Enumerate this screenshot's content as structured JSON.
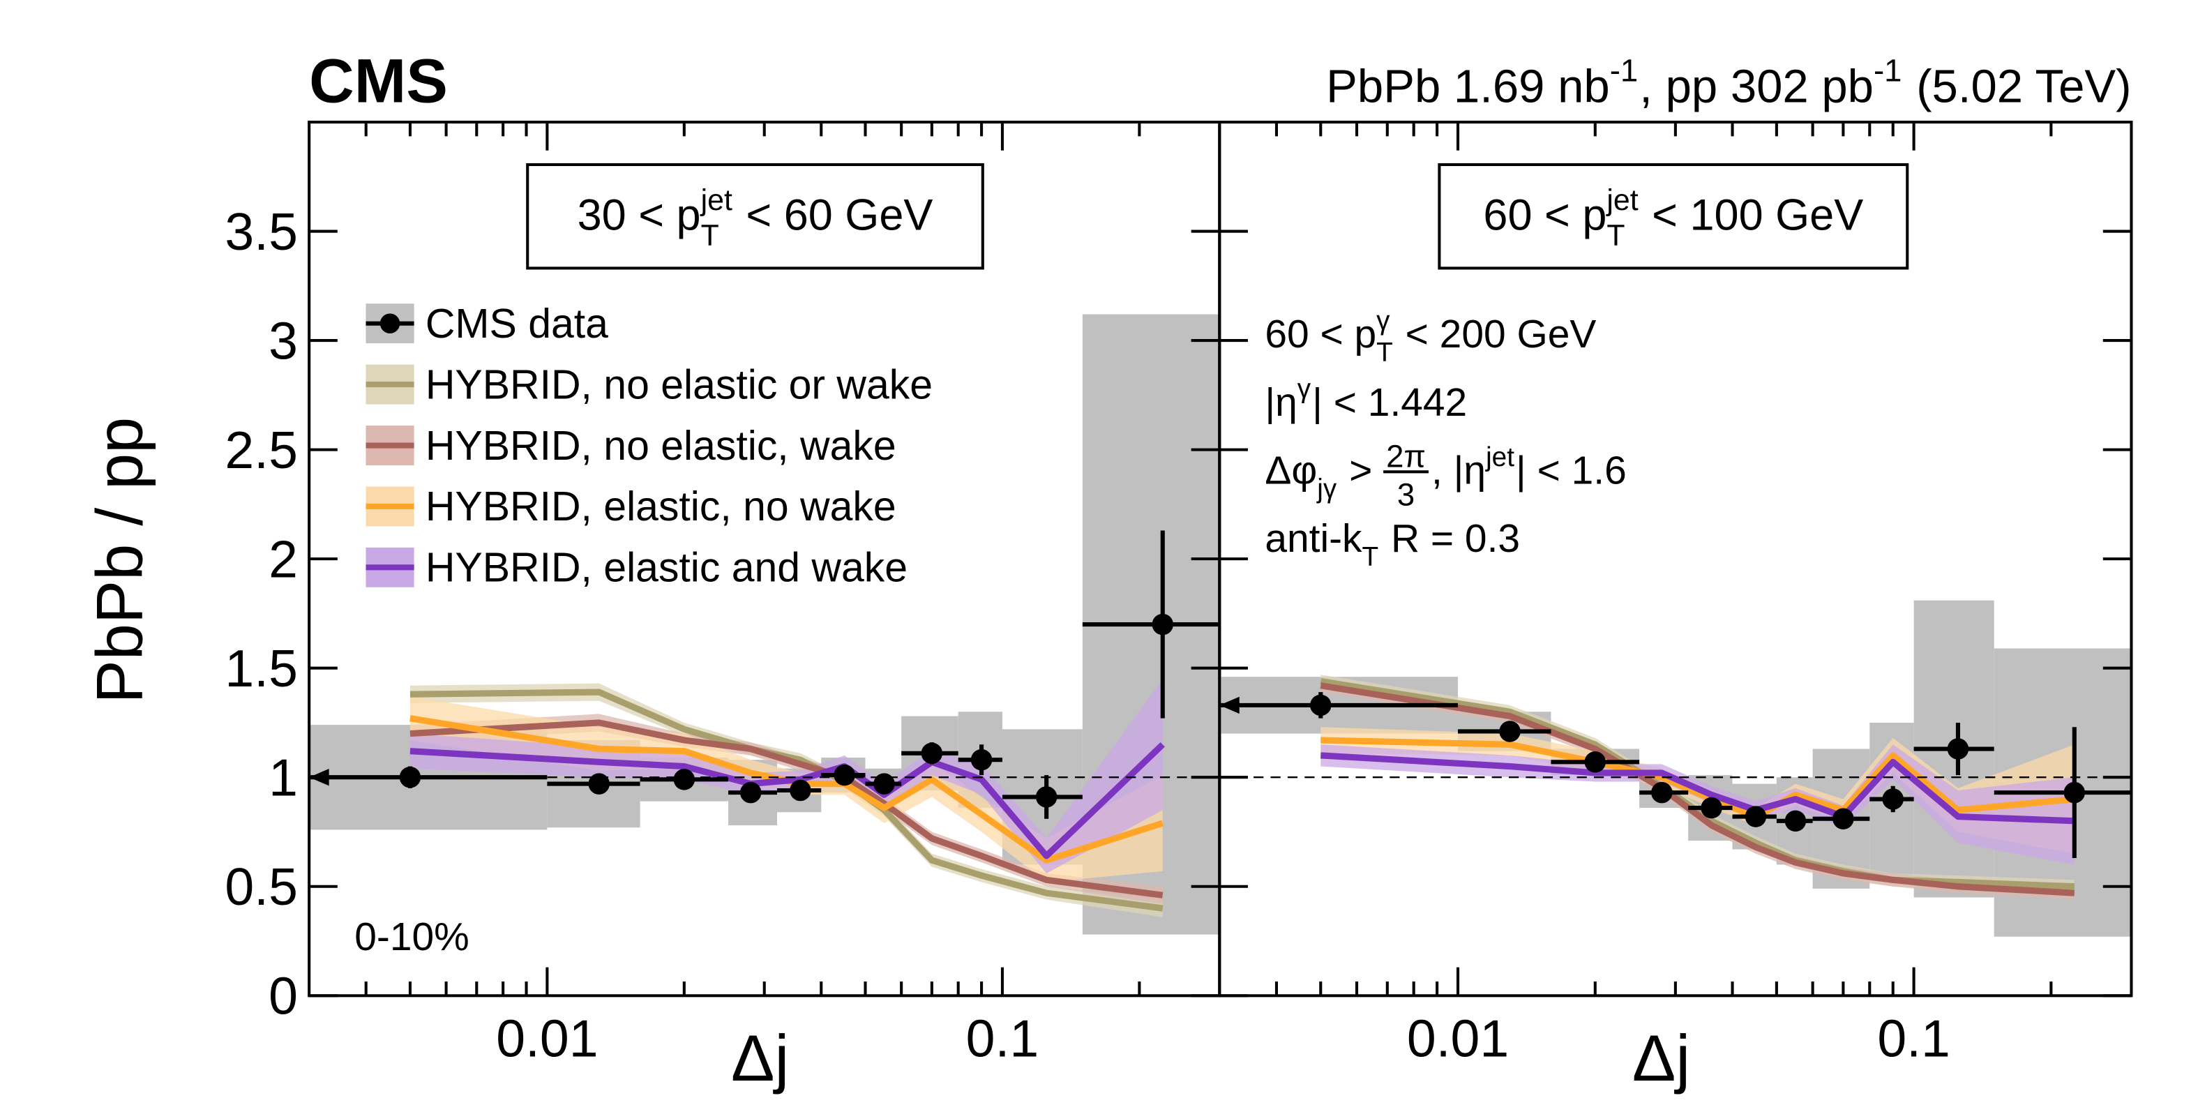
{
  "header": {
    "experiment": "CMS",
    "lumi": [
      {
        "t": "PbPb 1.69 nb"
      },
      {
        "sup": "-1"
      },
      {
        "t": ", pp 302 pb"
      },
      {
        "sup": "-1"
      },
      {
        "t": " (5.02 TeV)"
      }
    ]
  },
  "chart_data": [
    {
      "type": "line",
      "ylabel": "PbPb / pp",
      "xlabel": "Δj",
      "xscale": "log",
      "xlim": [
        0.003,
        0.3
      ],
      "xticks": [
        0.01,
        0.1
      ],
      "xminorticks": [
        0.004,
        0.005,
        0.006,
        0.007,
        0.008,
        0.009,
        0.02,
        0.03,
        0.04,
        0.05,
        0.06,
        0.07,
        0.08,
        0.09,
        0.2
      ],
      "ylim": [
        0,
        4
      ],
      "yticks": [
        0,
        0.5,
        1,
        1.5,
        2,
        2.5,
        3,
        3.5
      ],
      "show_ytick_labels": true,
      "hline": 1,
      "box_label": [
        {
          "t": "30 < p"
        },
        {
          "sub": "T",
          "sup": "jet"
        },
        {
          "t": " < 60 GeV"
        }
      ],
      "annotations": [
        [
          {
            "t": "0-10%"
          }
        ]
      ],
      "legend": "upper left",
      "x": [
        0.005,
        0.013,
        0.02,
        0.028,
        0.036,
        0.045,
        0.055,
        0.07,
        0.09,
        0.125,
        0.225
      ],
      "xlow": [
        0,
        0.01,
        0.016,
        0.025,
        0.032,
        0.04,
        0.05,
        0.06,
        0.08,
        0.1,
        0.15
      ],
      "xhigh": [
        0.01,
        0.016,
        0.025,
        0.032,
        0.04,
        0.05,
        0.06,
        0.08,
        0.1,
        0.15,
        0.3
      ],
      "data": {
        "name": "CMS data",
        "color": "#000000",
        "syst_color": "#c0c0c0",
        "values": [
          1.0,
          0.97,
          0.99,
          0.93,
          0.94,
          1.01,
          0.97,
          1.11,
          1.08,
          0.91,
          1.7
        ],
        "errors": [
          0.05,
          0.03,
          0.03,
          0.03,
          0.03,
          0.03,
          0.03,
          0.05,
          0.07,
          0.1,
          0.43
        ],
        "syst": [
          0.24,
          0.2,
          0.1,
          0.15,
          0.1,
          0.08,
          0.07,
          0.17,
          0.22,
          0.31,
          1.42
        ]
      },
      "series": [
        {
          "name": "HYBRID, no elastic or wake",
          "color": "#a89f6c",
          "band_color": "#ddd6b8",
          "values": [
            1.38,
            1.39,
            1.22,
            1.13,
            1.08,
            0.98,
            0.85,
            0.62,
            0.55,
            0.47,
            0.4
          ],
          "errors": [
            0.04,
            0.04,
            0.03,
            0.03,
            0.03,
            0.03,
            0.03,
            0.03,
            0.03,
            0.03,
            0.04
          ]
        },
        {
          "name": "HYBRID, no elastic, wake",
          "color": "#a8625a",
          "band_color": "#dcb8b0",
          "values": [
            1.2,
            1.25,
            1.17,
            1.13,
            1.06,
            1.0,
            0.88,
            0.72,
            0.64,
            0.53,
            0.46
          ],
          "errors": [
            0.04,
            0.04,
            0.03,
            0.03,
            0.03,
            0.03,
            0.03,
            0.03,
            0.03,
            0.03,
            0.04
          ]
        },
        {
          "name": "HYBRID, elastic, no wake",
          "color": "#ffa528",
          "band_color": "#fcd9a8",
          "values": [
            1.27,
            1.13,
            1.12,
            1.02,
            0.97,
            0.97,
            0.86,
            0.99,
            0.83,
            0.62,
            0.79
          ],
          "errors": [
            0.1,
            0.1,
            0.08,
            0.06,
            0.05,
            0.05,
            0.07,
            0.08,
            0.08,
            0.1,
            0.22
          ]
        },
        {
          "name": "HYBRID, elastic and wake",
          "color": "#7d35c0",
          "band_color": "#c9a8e6",
          "values": [
            1.12,
            1.07,
            1.05,
            0.97,
            0.99,
            1.05,
            0.92,
            1.07,
            0.99,
            0.64,
            1.15
          ],
          "errors": [
            0.08,
            0.07,
            0.06,
            0.05,
            0.04,
            0.05,
            0.05,
            0.06,
            0.07,
            0.08,
            0.3
          ]
        }
      ]
    },
    {
      "type": "line",
      "xlabel": "Δj",
      "xscale": "log",
      "xlim": [
        0.003,
        0.3
      ],
      "xticks": [
        0.01,
        0.1
      ],
      "xminorticks": [
        0.004,
        0.005,
        0.006,
        0.007,
        0.008,
        0.009,
        0.02,
        0.03,
        0.04,
        0.05,
        0.06,
        0.07,
        0.08,
        0.09,
        0.2
      ],
      "ylim": [
        0,
        4
      ],
      "yticks": [
        0,
        0.5,
        1,
        1.5,
        2,
        2.5,
        3,
        3.5
      ],
      "show_ytick_labels": false,
      "hline": 1,
      "box_label": [
        {
          "t": "60 < p"
        },
        {
          "sub": "T",
          "sup": "jet"
        },
        {
          "t": " < 100 GeV"
        }
      ],
      "annotations": [
        [
          {
            "t": "60 < p"
          },
          {
            "sub": "T",
            "sup": "γ"
          },
          {
            "t": " < 200 GeV"
          }
        ],
        [
          {
            "t": "|η"
          },
          {
            "sup": "γ"
          },
          {
            "t": "| < 1.442"
          }
        ],
        [
          {
            "t": "Δφ"
          },
          {
            "sub": "jγ"
          },
          {
            "t": " > "
          },
          {
            "num": "2π",
            "den": "3"
          },
          {
            "t": ", |η"
          },
          {
            "sup": "jet"
          },
          {
            "t": "| < 1.6"
          }
        ],
        [
          {
            "t": "anti-k"
          },
          {
            "sub": "T"
          },
          {
            "t": " R = 0.3"
          }
        ]
      ],
      "x": [
        0.005,
        0.013,
        0.02,
        0.028,
        0.036,
        0.045,
        0.055,
        0.07,
        0.09,
        0.125,
        0.225
      ],
      "xlow": [
        0,
        0.01,
        0.016,
        0.025,
        0.032,
        0.04,
        0.05,
        0.06,
        0.08,
        0.1,
        0.15
      ],
      "xhigh": [
        0.01,
        0.016,
        0.025,
        0.032,
        0.04,
        0.05,
        0.06,
        0.08,
        0.1,
        0.15,
        0.3
      ],
      "data": {
        "color": "#000000",
        "syst_color": "#c0c0c0",
        "values": [
          1.33,
          1.21,
          1.07,
          0.93,
          0.86,
          0.82,
          0.8,
          0.81,
          0.9,
          1.13,
          0.93
        ],
        "errors": [
          0.06,
          0.04,
          0.03,
          0.03,
          0.03,
          0.03,
          0.03,
          0.03,
          0.06,
          0.12,
          0.3
        ],
        "syst": [
          0.13,
          0.09,
          0.06,
          0.07,
          0.15,
          0.15,
          0.2,
          0.32,
          0.35,
          0.68,
          0.66
        ]
      },
      "series": [
        {
          "color": "#a89f6c",
          "band_color": "#ddd6b8",
          "values": [
            1.44,
            1.3,
            1.15,
            0.96,
            0.8,
            0.7,
            0.62,
            0.57,
            0.53,
            0.52,
            0.5
          ],
          "errors": [
            0.03,
            0.03,
            0.03,
            0.03,
            0.03,
            0.03,
            0.03,
            0.03,
            0.03,
            0.03,
            0.03
          ]
        },
        {
          "color": "#a8625a",
          "band_color": "#dcb8b0",
          "values": [
            1.42,
            1.28,
            1.13,
            0.95,
            0.78,
            0.68,
            0.61,
            0.56,
            0.53,
            0.5,
            0.47
          ],
          "errors": [
            0.03,
            0.03,
            0.03,
            0.03,
            0.03,
            0.03,
            0.03,
            0.03,
            0.03,
            0.03,
            0.03
          ]
        },
        {
          "color": "#ffa528",
          "band_color": "#fcd9a8",
          "values": [
            1.17,
            1.15,
            1.07,
            1.0,
            0.9,
            0.82,
            0.92,
            0.85,
            1.1,
            0.85,
            0.9
          ],
          "errors": [
            0.06,
            0.05,
            0.05,
            0.04,
            0.04,
            0.04,
            0.05,
            0.05,
            0.08,
            0.1,
            0.25
          ]
        },
        {
          "color": "#7d35c0",
          "band_color": "#c9a8e6",
          "values": [
            1.1,
            1.05,
            1.02,
            1.02,
            0.92,
            0.85,
            0.9,
            0.82,
            1.07,
            0.82,
            0.8
          ],
          "errors": [
            0.05,
            0.05,
            0.04,
            0.04,
            0.04,
            0.04,
            0.05,
            0.05,
            0.08,
            0.12,
            0.2
          ]
        }
      ]
    }
  ]
}
